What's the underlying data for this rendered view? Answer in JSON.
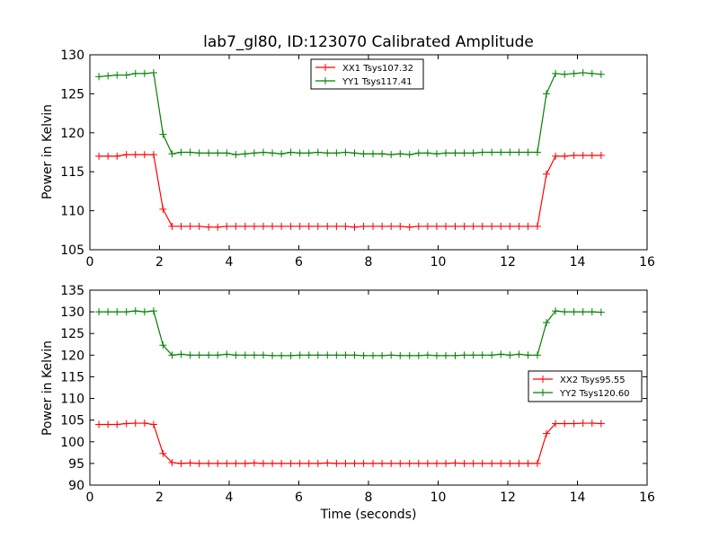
{
  "chart_data": [
    {
      "type": "line",
      "title": "lab7_gl80, ID:123070 Calibrated Amplitude",
      "xlabel": "",
      "ylabel": "Power in Kelvin",
      "xlim": [
        0,
        16
      ],
      "ylim": [
        105,
        130
      ],
      "xticks": [
        "0",
        "2",
        "4",
        "6",
        "8",
        "10",
        "12",
        "14",
        "16"
      ],
      "yticks": [
        "105",
        "110",
        "115",
        "120",
        "125",
        "130"
      ],
      "legend_position": "top-center",
      "grid": false,
      "x": [
        0.26,
        0.52,
        0.78,
        1.05,
        1.31,
        1.57,
        1.83,
        2.1,
        2.36,
        2.62,
        2.88,
        3.14,
        3.41,
        3.67,
        3.93,
        4.19,
        4.46,
        4.72,
        4.98,
        5.24,
        5.5,
        5.77,
        6.03,
        6.29,
        6.55,
        6.82,
        7.08,
        7.34,
        7.6,
        7.86,
        8.13,
        8.39,
        8.65,
        8.91,
        9.18,
        9.44,
        9.7,
        9.96,
        10.22,
        10.49,
        10.75,
        11.01,
        11.27,
        11.54,
        11.8,
        12.06,
        12.32,
        12.58,
        12.85,
        13.11,
        13.37,
        13.63,
        13.9,
        14.16,
        14.42,
        14.68
      ],
      "series": [
        {
          "name": "XX1 Tsys107.32",
          "color": "#ff0000",
          "values": [
            117.0,
            117.0,
            117.0,
            117.2,
            117.2,
            117.2,
            117.2,
            110.2,
            108.0,
            108.0,
            108.0,
            108.0,
            107.9,
            107.9,
            108.0,
            108.0,
            108.0,
            108.0,
            108.0,
            108.0,
            108.0,
            108.0,
            108.0,
            108.0,
            108.0,
            108.0,
            108.0,
            108.0,
            107.9,
            108.0,
            108.0,
            108.0,
            108.0,
            108.0,
            107.9,
            108.0,
            108.0,
            108.0,
            108.0,
            108.0,
            108.0,
            108.0,
            108.0,
            108.0,
            108.0,
            108.0,
            108.0,
            108.0,
            108.0,
            114.7,
            117.0,
            117.0,
            117.1,
            117.1,
            117.1,
            117.1
          ]
        },
        {
          "name": "YY1 Tsys117.41",
          "color": "#008000",
          "values": [
            127.2,
            127.3,
            127.4,
            127.4,
            127.6,
            127.6,
            127.7,
            119.8,
            117.3,
            117.5,
            117.5,
            117.4,
            117.4,
            117.4,
            117.4,
            117.2,
            117.3,
            117.4,
            117.5,
            117.4,
            117.3,
            117.5,
            117.4,
            117.4,
            117.5,
            117.4,
            117.4,
            117.5,
            117.4,
            117.3,
            117.3,
            117.3,
            117.2,
            117.3,
            117.2,
            117.4,
            117.4,
            117.3,
            117.4,
            117.4,
            117.4,
            117.4,
            117.5,
            117.5,
            117.5,
            117.5,
            117.5,
            117.5,
            117.5,
            125.0,
            127.6,
            127.5,
            127.6,
            127.7,
            127.6,
            127.5
          ]
        }
      ]
    },
    {
      "type": "line",
      "title": "",
      "xlabel": "Time (seconds)",
      "ylabel": "Power in Kelvin",
      "xlim": [
        0,
        16
      ],
      "ylim": [
        90,
        135
      ],
      "xticks": [
        "0",
        "2",
        "4",
        "6",
        "8",
        "10",
        "12",
        "14",
        "16"
      ],
      "yticks": [
        "90",
        "95",
        "100",
        "105",
        "110",
        "115",
        "120",
        "125",
        "130",
        "135"
      ],
      "legend_position": "right",
      "grid": false,
      "x": [
        0.26,
        0.52,
        0.78,
        1.05,
        1.31,
        1.57,
        1.83,
        2.1,
        2.36,
        2.62,
        2.88,
        3.14,
        3.41,
        3.67,
        3.93,
        4.19,
        4.46,
        4.72,
        4.98,
        5.24,
        5.5,
        5.77,
        6.03,
        6.29,
        6.55,
        6.82,
        7.08,
        7.34,
        7.6,
        7.86,
        8.13,
        8.39,
        8.65,
        8.91,
        9.18,
        9.44,
        9.7,
        9.96,
        10.22,
        10.49,
        10.75,
        11.01,
        11.27,
        11.54,
        11.8,
        12.06,
        12.32,
        12.58,
        12.85,
        13.11,
        13.37,
        13.63,
        13.9,
        14.16,
        14.42,
        14.68
      ],
      "series": [
        {
          "name": "XX2 Tsys95.55",
          "color": "#ff0000",
          "values": [
            104.0,
            104.0,
            104.0,
            104.2,
            104.3,
            104.3,
            104.0,
            97.3,
            95.2,
            95.0,
            95.1,
            95.0,
            95.0,
            95.0,
            95.0,
            95.0,
            95.0,
            95.1,
            95.0,
            95.0,
            95.0,
            95.0,
            95.0,
            95.0,
            95.0,
            95.1,
            95.0,
            95.0,
            95.0,
            95.0,
            95.0,
            95.0,
            95.0,
            95.0,
            95.0,
            95.0,
            95.0,
            95.0,
            95.0,
            95.1,
            95.0,
            95.0,
            95.0,
            95.0,
            95.0,
            95.0,
            95.0,
            95.0,
            95.0,
            101.9,
            104.2,
            104.2,
            104.2,
            104.3,
            104.3,
            104.2
          ]
        },
        {
          "name": "YY2 Tsys120.60",
          "color": "#008000",
          "values": [
            130.0,
            130.0,
            130.0,
            130.0,
            130.2,
            130.0,
            130.2,
            122.3,
            120.0,
            120.2,
            120.0,
            120.0,
            120.0,
            120.0,
            120.2,
            120.0,
            120.0,
            120.0,
            120.0,
            119.9,
            119.9,
            119.9,
            120.0,
            120.0,
            120.0,
            120.0,
            120.0,
            120.0,
            120.0,
            119.9,
            119.9,
            119.9,
            120.0,
            119.9,
            119.9,
            119.9,
            120.0,
            119.9,
            119.9,
            119.9,
            120.0,
            120.0,
            120.0,
            120.0,
            120.2,
            120.0,
            120.2,
            120.0,
            120.0,
            127.5,
            130.2,
            130.0,
            130.0,
            130.0,
            130.0,
            129.9
          ]
        }
      ]
    }
  ]
}
